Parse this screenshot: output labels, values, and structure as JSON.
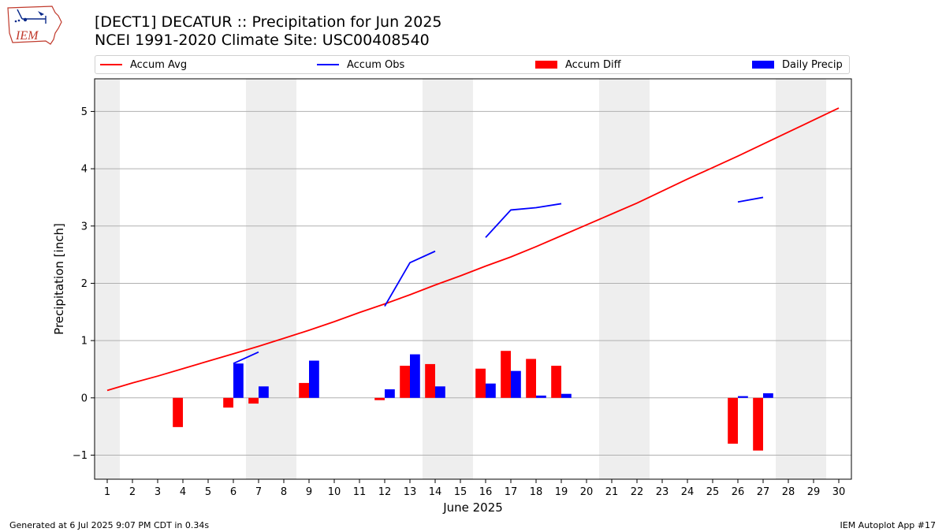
{
  "logo_text": "IEM",
  "title_line1": "[DECT1] DECATUR :: Precipitation for Jun 2025",
  "title_line2": "NCEI 1991-2020 Climate Site: USC00408540",
  "legend": {
    "accum_avg": "Accum Avg",
    "accum_obs": "Accum Obs",
    "accum_diff": "Accum Diff",
    "daily_precip": "Daily Precip"
  },
  "footer": {
    "left": "Generated at 6 Jul 2025 9:07 PM CDT in 0.34s",
    "right": "IEM Autoplot App #17"
  },
  "colors": {
    "avg": "#ff0000",
    "obs": "#0000ff",
    "diff": "#ff0000",
    "daily": "#0000ff",
    "weekend": "#eeeeee",
    "grid": "#b0b0b0"
  },
  "chart_data": {
    "type": "bar",
    "xlabel": "June 2025",
    "ylabel": "Precipitation [inch]",
    "xlim": [
      0.5,
      30.5
    ],
    "ylim": [
      -1.42,
      5.57
    ],
    "x_ticks": [
      1,
      2,
      3,
      4,
      5,
      6,
      7,
      8,
      9,
      10,
      11,
      12,
      13,
      14,
      15,
      16,
      17,
      18,
      19,
      20,
      21,
      22,
      23,
      24,
      25,
      26,
      27,
      28,
      29,
      30
    ],
    "y_ticks": [
      -1,
      0,
      1,
      2,
      3,
      4,
      5
    ],
    "y_tick_labels": [
      "−1",
      "0",
      "1",
      "2",
      "3",
      "4",
      "5"
    ],
    "grid": "horizontal",
    "legend_position": "top",
    "weekend_days": [
      1,
      7,
      8,
      14,
      15,
      21,
      22,
      28,
      29
    ],
    "series": [
      {
        "name": "Accum Avg",
        "kind": "line",
        "x": [
          1,
          2,
          3,
          4,
          5,
          6,
          7,
          8,
          9,
          10,
          11,
          12,
          13,
          14,
          15,
          16,
          17,
          18,
          19,
          20,
          21,
          22,
          23,
          24,
          25,
          26,
          27,
          28,
          29,
          30
        ],
        "values": [
          0.13,
          0.26,
          0.38,
          0.51,
          0.64,
          0.77,
          0.9,
          1.04,
          1.18,
          1.33,
          1.49,
          1.64,
          1.8,
          1.97,
          2.13,
          2.3,
          2.46,
          2.64,
          2.83,
          3.02,
          3.21,
          3.4,
          3.61,
          3.82,
          4.02,
          4.22,
          4.43,
          4.64,
          4.85,
          5.06
        ]
      },
      {
        "name": "Accum Obs",
        "kind": "line",
        "segments": [
          {
            "x": [
              6,
              7
            ],
            "values": [
              0.6,
              0.8
            ]
          },
          {
            "x": [
              12,
              13,
              14
            ],
            "values": [
              1.6,
              2.36,
              2.56
            ]
          },
          {
            "x": [
              16,
              17,
              18,
              19
            ],
            "values": [
              2.8,
              3.28,
              3.32,
              3.39
            ]
          },
          {
            "x": [
              26,
              27
            ],
            "values": [
              3.42,
              3.5
            ]
          }
        ]
      },
      {
        "name": "Accum Diff",
        "kind": "bar",
        "x": [
          4,
          6,
          7,
          9,
          12,
          13,
          14,
          16,
          17,
          18,
          19,
          26,
          27
        ],
        "values": [
          -0.51,
          -0.17,
          -0.1,
          0.26,
          -0.04,
          0.56,
          0.59,
          0.51,
          0.82,
          0.68,
          0.56,
          -0.8,
          -0.92
        ]
      },
      {
        "name": "Daily Precip",
        "kind": "bar",
        "x": [
          6,
          7,
          9,
          12,
          13,
          14,
          16,
          17,
          18,
          19,
          26,
          27
        ],
        "values": [
          0.6,
          0.2,
          0.65,
          0.15,
          0.76,
          0.2,
          0.25,
          0.47,
          0.04,
          0.07,
          0.03,
          0.08
        ]
      }
    ]
  }
}
